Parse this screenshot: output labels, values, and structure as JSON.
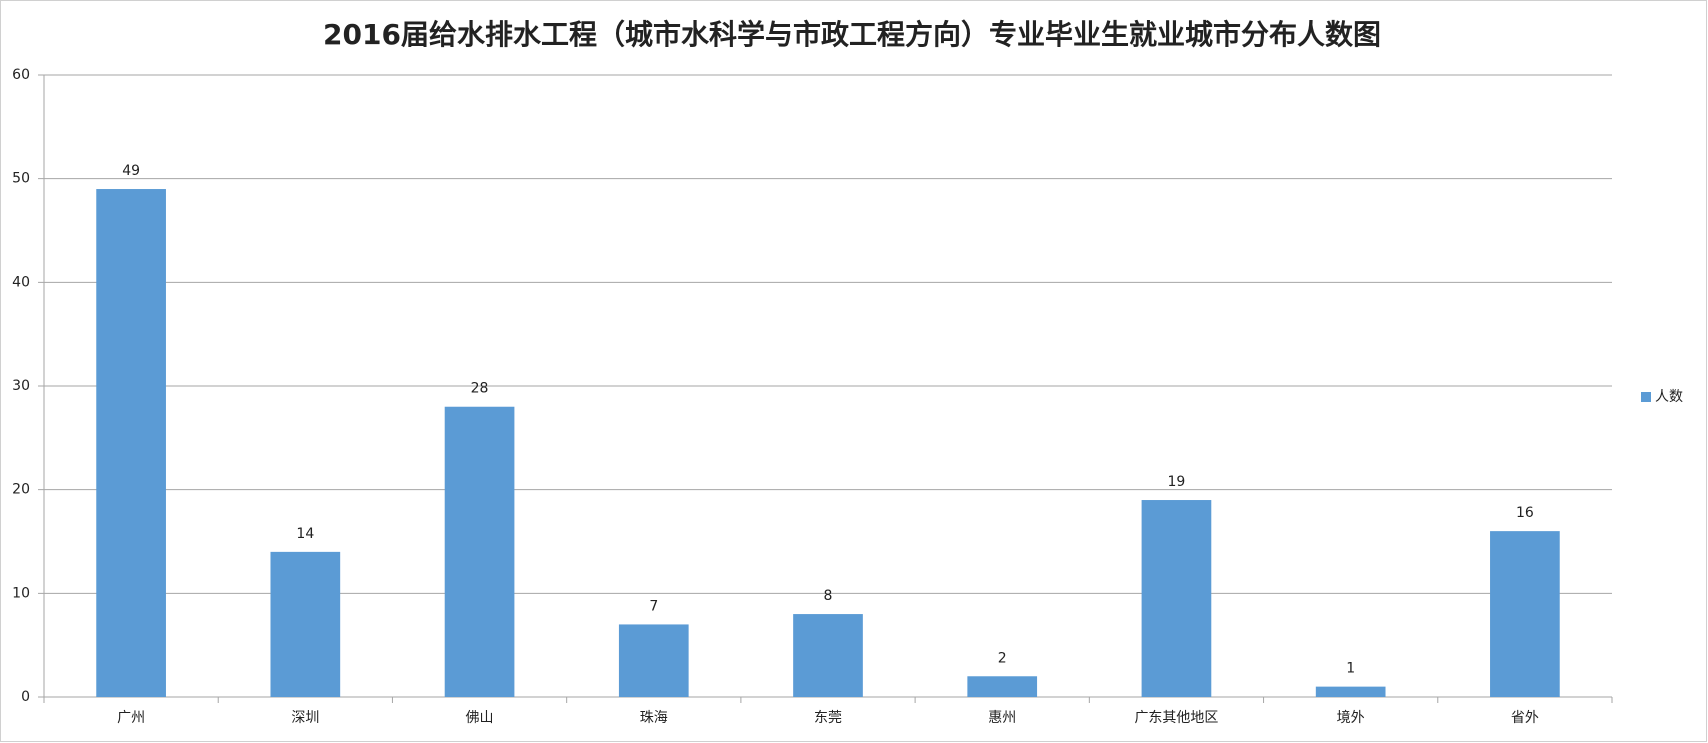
{
  "chart_data": {
    "type": "bar",
    "title": "2016届给水排水工程（城市水科学与市政工程方向）专业毕业生就业城市分布人数图",
    "categories": [
      "广州",
      "深圳",
      "佛山",
      "珠海",
      "东莞",
      "惠州",
      "广东其他地区",
      "境外",
      "省外"
    ],
    "series": [
      {
        "name": "人数",
        "color": "#5b9bd5",
        "values": [
          49,
          14,
          28,
          7,
          8,
          2,
          19,
          1,
          16
        ]
      }
    ],
    "ylim": [
      0,
      60
    ],
    "yticks": [
      0,
      10,
      20,
      30,
      40,
      50,
      60
    ],
    "grid": true,
    "legend": "right",
    "data_labels": true
  }
}
